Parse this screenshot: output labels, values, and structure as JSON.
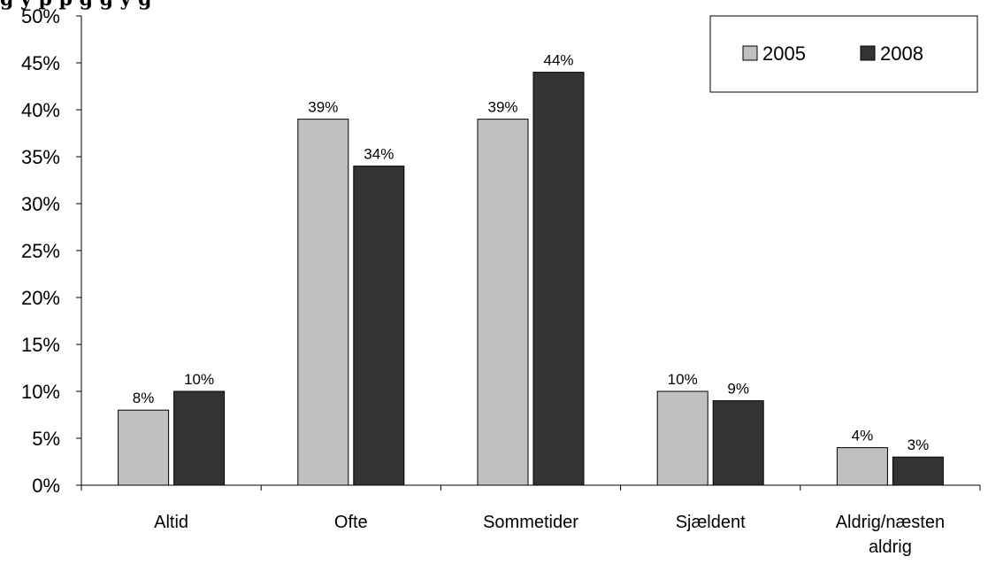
{
  "chart_data": {
    "type": "bar",
    "title": "g             y    p                               p  g                                    g        y  g",
    "categories": [
      "Altid",
      "Ofte",
      "Sommetider",
      "Sjældent",
      "Aldrig/næsten aldrig"
    ],
    "series": [
      {
        "name": "2005",
        "values": [
          8,
          39,
          39,
          10,
          4
        ],
        "labels": [
          "8%",
          "39%",
          "39%",
          "10%",
          "4%"
        ],
        "color": "#c0c0c0"
      },
      {
        "name": "2008",
        "values": [
          10,
          34,
          44,
          9,
          3
        ],
        "labels": [
          "10%",
          "34%",
          "44%",
          "9%",
          "3%"
        ],
        "color": "#333333"
      }
    ],
    "ylim": [
      0,
      50
    ],
    "yticks": [
      "0%",
      "5%",
      "10%",
      "15%",
      "20%",
      "25%",
      "30%",
      "35%",
      "40%",
      "45%",
      "50%"
    ],
    "grid": false,
    "legend_position": "top-right"
  }
}
